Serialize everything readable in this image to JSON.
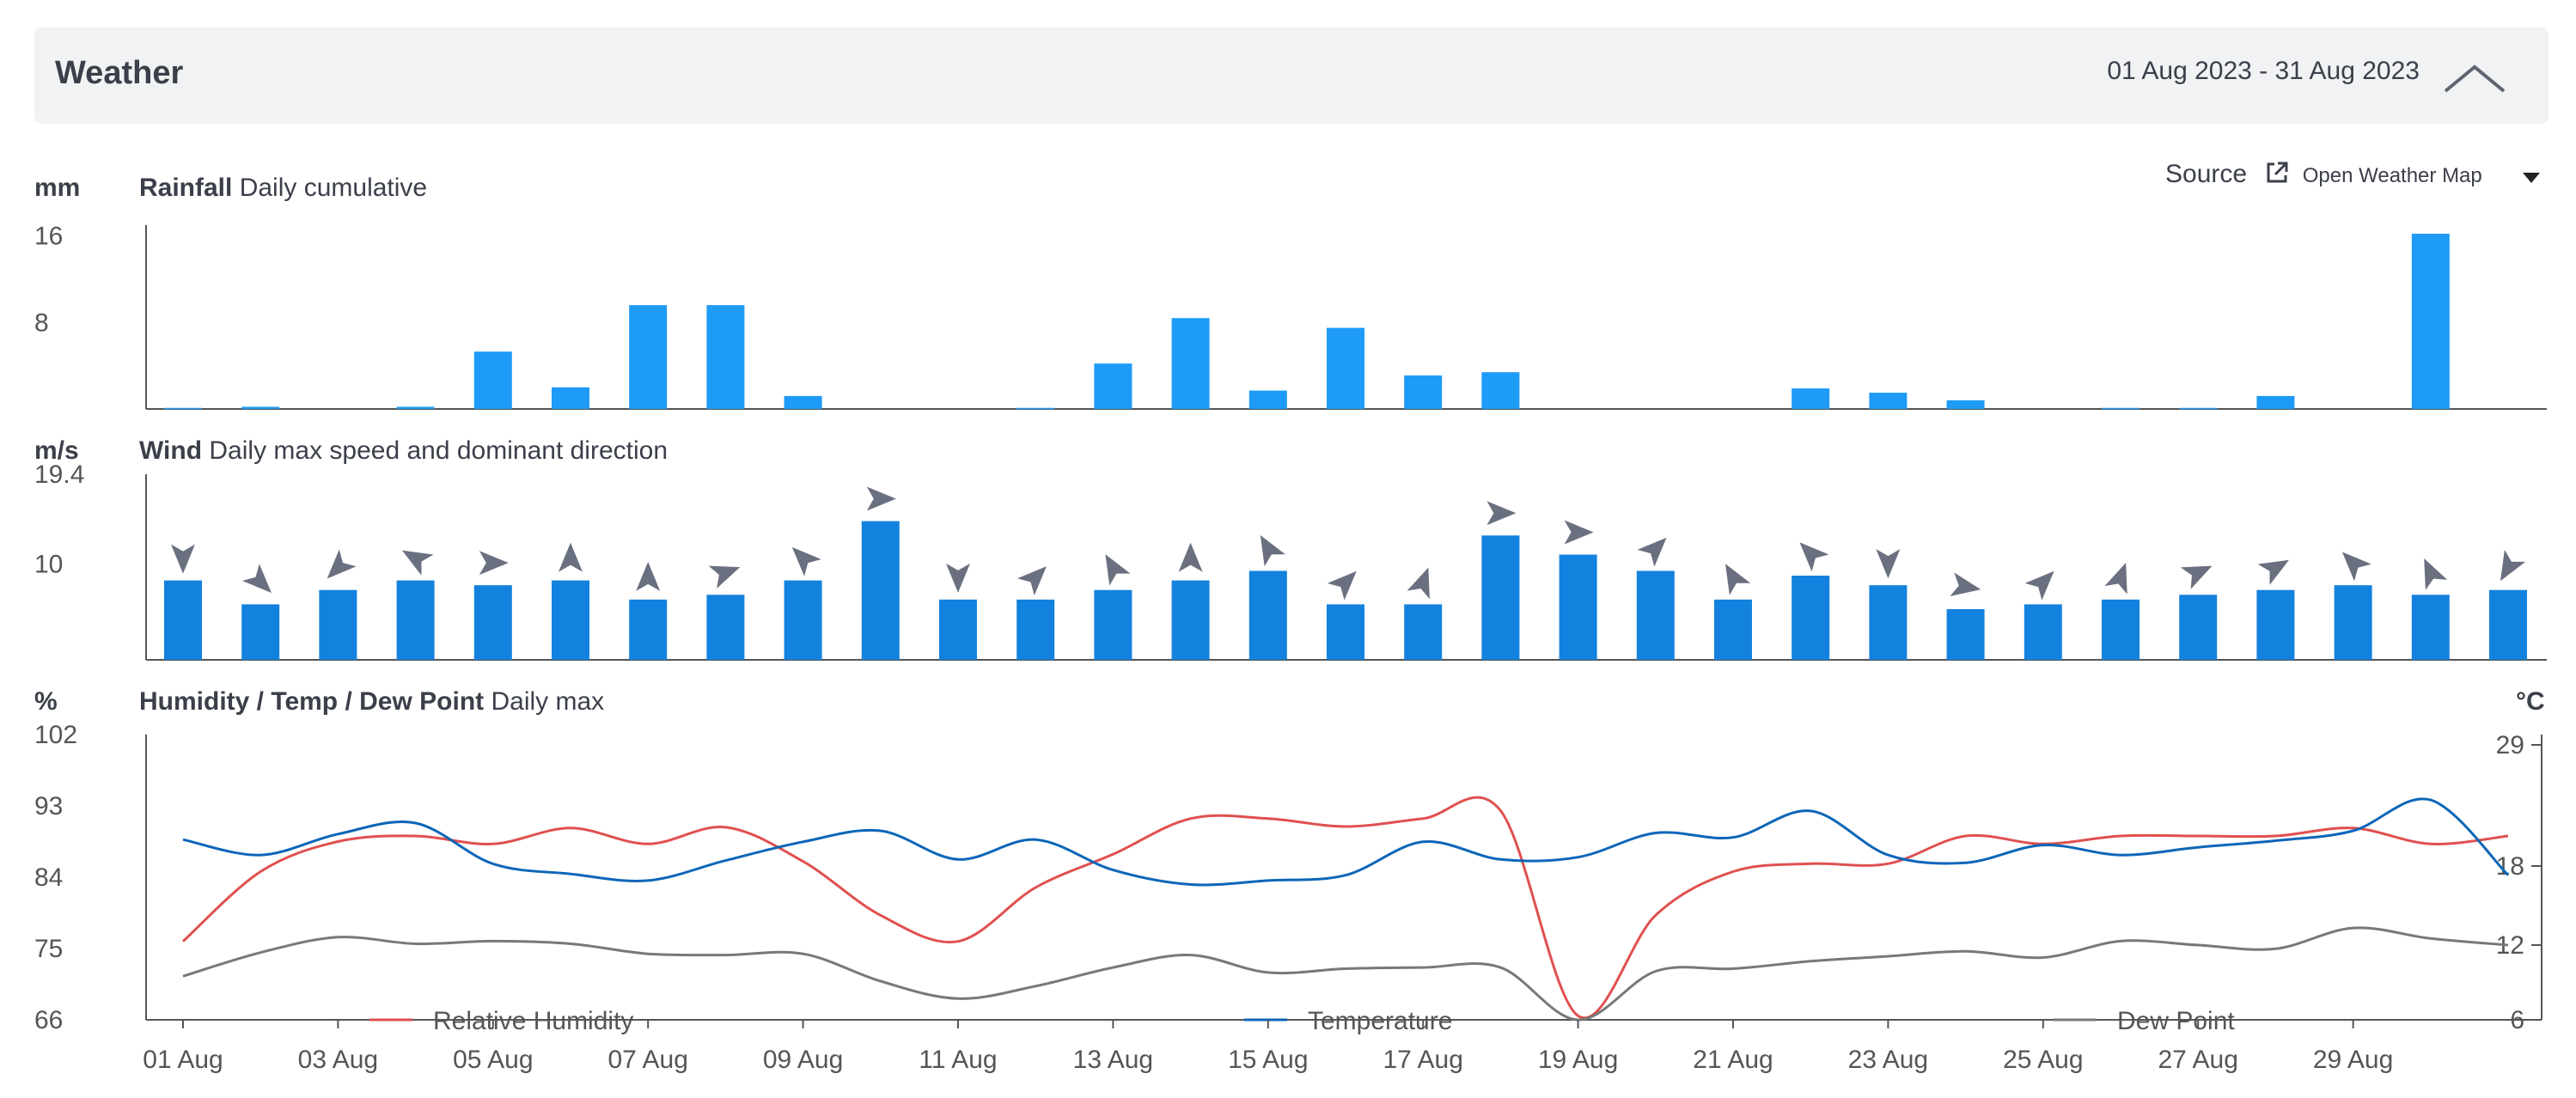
{
  "header": {
    "title": "Weather",
    "date_range": "01 Aug 2023 - 31 Aug 2023",
    "collapse_icon": "chevron-up-icon"
  },
  "source": {
    "label": "Source",
    "name": "Open Weather Map",
    "link_icon": "external-link-icon",
    "dropdown_icon": "caret-down-icon"
  },
  "colors": {
    "rain": "#1e9bf7",
    "wind": "#1382de",
    "arrow": "#6a7080",
    "humidity": "#e0504f",
    "temperature": "#0d66b8",
    "dew_point": "#787878",
    "axis": "#555555"
  },
  "x_labels": [
    "01 Aug",
    "03 Aug",
    "05 Aug",
    "07 Aug",
    "09 Aug",
    "11 Aug",
    "13 Aug",
    "15 Aug",
    "17 Aug",
    "19 Aug",
    "21 Aug",
    "23 Aug",
    "25 Aug",
    "27 Aug",
    "29 Aug"
  ],
  "chart_data": [
    {
      "type": "bar",
      "title": "Rainfall",
      "subtitle": "Daily cumulative",
      "ylabel": "mm",
      "yticks": [
        8,
        16
      ],
      "ylim": [
        0,
        17
      ],
      "days": [
        1,
        2,
        3,
        4,
        5,
        6,
        7,
        8,
        9,
        10,
        11,
        12,
        13,
        14,
        15,
        16,
        17,
        18,
        19,
        20,
        21,
        22,
        23,
        24,
        25,
        26,
        27,
        28,
        29,
        30,
        31
      ],
      "values": [
        0.1,
        0.2,
        0,
        0.2,
        5.3,
        2.0,
        9.6,
        9.6,
        1.2,
        0,
        0,
        0.1,
        4.2,
        8.4,
        1.7,
        7.5,
        3.1,
        3.4,
        0,
        0,
        0,
        1.9,
        1.5,
        0.8,
        0,
        0.1,
        0.1,
        1.2,
        0,
        16.2,
        0
      ]
    },
    {
      "type": "bar",
      "title": "Wind",
      "subtitle": "Daily max speed and dominant direction",
      "ylabel": "m/s",
      "yticks": [
        10,
        19.4
      ],
      "ylim": [
        0,
        19.4
      ],
      "days": [
        1,
        2,
        3,
        4,
        5,
        6,
        7,
        8,
        9,
        10,
        11,
        12,
        13,
        14,
        15,
        16,
        17,
        18,
        19,
        20,
        21,
        22,
        23,
        24,
        25,
        26,
        27,
        28,
        29,
        30,
        31
      ],
      "values": [
        8.3,
        5.8,
        7.3,
        8.3,
        7.8,
        8.3,
        6.3,
        6.8,
        8.3,
        14.5,
        6.3,
        6.3,
        7.3,
        8.3,
        9.3,
        5.8,
        5.8,
        13.0,
        11.0,
        9.3,
        6.3,
        8.8,
        7.8,
        5.3,
        5.8,
        6.3,
        6.8,
        7.3,
        7.8,
        6.8,
        7.3
      ],
      "direction_deg": [
        180,
        135,
        225,
        300,
        90,
        0,
        0,
        70,
        315,
        90,
        180,
        45,
        330,
        0,
        330,
        45,
        20,
        90,
        90,
        45,
        330,
        315,
        180,
        100,
        45,
        20,
        65,
        60,
        315,
        335,
        210
      ]
    },
    {
      "type": "line",
      "title": "Humidity / Temp / Dew Point",
      "subtitle": "Daily max",
      "ylabel": "%",
      "y2label": "°C",
      "yticks": [
        66,
        75,
        84,
        93,
        102
      ],
      "y2ticks": [
        6,
        12,
        18,
        29
      ],
      "ylim": [
        66,
        102
      ],
      "days": [
        1,
        2,
        3,
        4,
        5,
        6,
        7,
        8,
        9,
        10,
        11,
        12,
        13,
        14,
        15,
        16,
        17,
        18,
        19,
        20,
        21,
        22,
        23,
        24,
        25,
        26,
        27,
        28,
        29,
        30,
        31
      ],
      "series": [
        {
          "name": "Relative Humidity",
          "axis": "left",
          "values": [
            75.9,
            84.7,
            88.5,
            89.2,
            88.2,
            90.2,
            88.2,
            90.3,
            86.0,
            79.2,
            75.9,
            82.7,
            86.9,
            91.4,
            91.4,
            90.4,
            91.4,
            92.4,
            66.5,
            79.2,
            84.7,
            85.7,
            85.7,
            89.2,
            88.2,
            89.2,
            89.2,
            89.2,
            90.2,
            88.2,
            89.2
          ]
        },
        {
          "name": "Temperature",
          "axis": "right",
          "values": [
            20.4,
            19.0,
            20.9,
            21.9,
            18.2,
            17.4,
            16.9,
            18.5,
            20.2,
            21.2,
            18.6,
            20.4,
            17.7,
            16.6,
            16.9,
            17.3,
            20.2,
            18.6,
            18.8,
            21.0,
            20.6,
            23.0,
            19.0,
            18.3,
            19.9,
            19.0,
            19.7,
            20.3,
            21.2,
            24.0,
            17.3
          ]
        },
        {
          "name": "Dew Point",
          "axis": "right",
          "values": [
            9.5,
            11.4,
            12.6,
            12.1,
            12.3,
            12.1,
            11.3,
            11.2,
            11.3,
            9.1,
            7.7,
            8.7,
            10.2,
            11.2,
            9.8,
            10.1,
            10.2,
            10.2,
            6.0,
            9.9,
            10.1,
            10.7,
            11.1,
            11.5,
            11.0,
            12.3,
            12.0,
            11.7,
            13.3,
            12.5,
            12.0
          ]
        }
      ]
    }
  ]
}
